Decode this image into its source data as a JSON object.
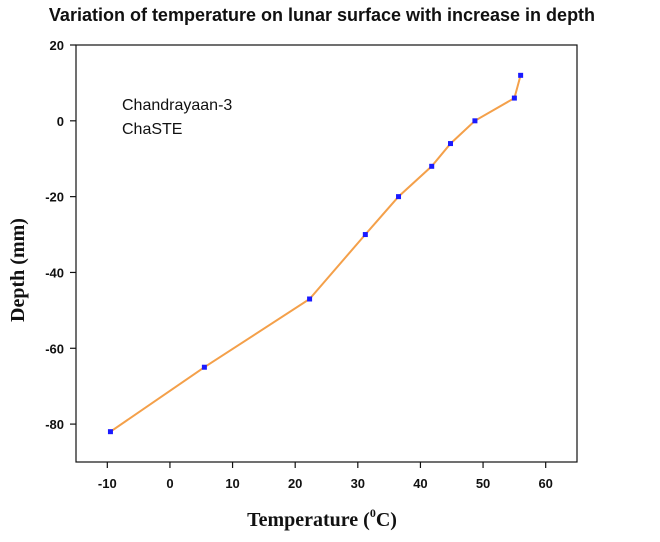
{
  "chart_data": {
    "type": "line",
    "title": "Variation of temperature on lunar surface with increase in depth",
    "xlabel": "Temperature (",
    "xlabel_sup": "0",
    "xlabel_tail": "C)",
    "ylabel": "Depth (mm)",
    "xlim": [
      -15,
      65
    ],
    "ylim": [
      -90,
      20
    ],
    "x_ticks": [
      "-10",
      "0",
      "10",
      "20",
      "30",
      "40",
      "50",
      "60"
    ],
    "y_ticks": [
      "20",
      "0",
      "-20",
      "-40",
      "-60",
      "-80"
    ],
    "annotations": [
      "Chandrayaan-3",
      "ChaSTE"
    ],
    "grid": false,
    "line_color": "#F4A04A",
    "marker_color": "#1a1aff",
    "series": [
      {
        "x": [
          -9.5,
          5.5,
          22.3,
          31.2,
          36.5,
          41.8,
          44.8,
          48.7,
          55.0,
          56.0
        ],
        "y": [
          -82,
          -65,
          -47,
          -30,
          -20,
          -12,
          -6,
          0,
          6,
          12
        ]
      }
    ]
  }
}
